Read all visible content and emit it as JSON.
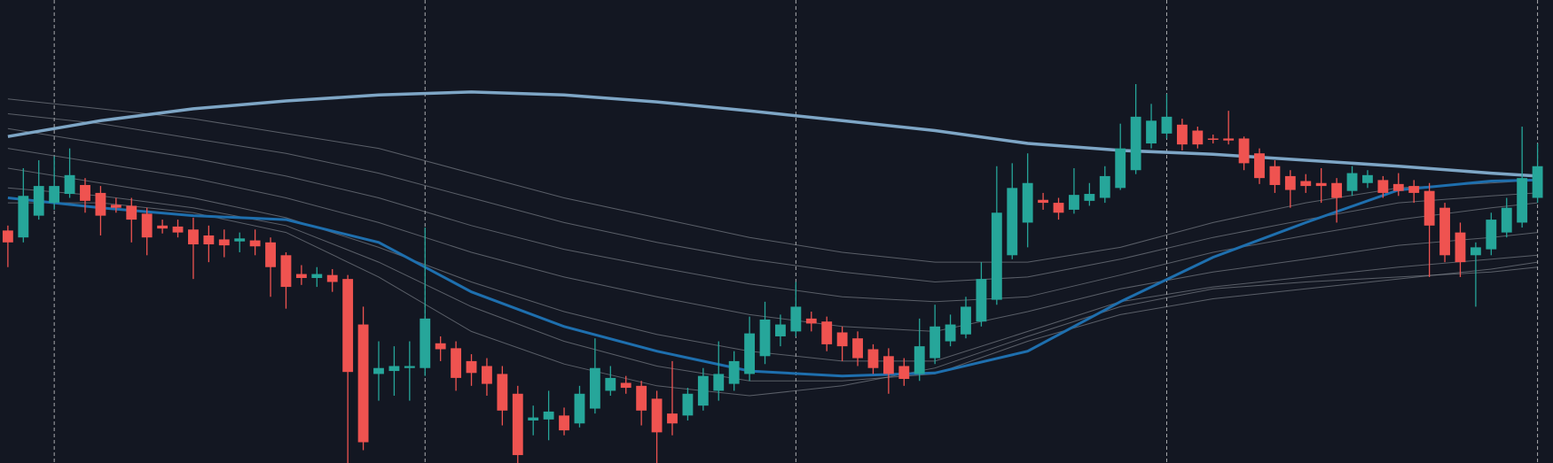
{
  "chart_data": {
    "type": "candlestick",
    "background": "#131722",
    "up_color": "#26a69a",
    "down_color": "#ef5350",
    "xlim": [
      -0.51,
      100
    ],
    "ylim": [
      2,
      470
    ],
    "xgrid": [
      3,
      27,
      51,
      75,
      99
    ],
    "open": [
      237,
      230,
      252,
      265,
      274,
      283,
      275,
      263,
      262,
      254,
      242,
      241,
      238,
      232,
      228,
      226,
      227,
      225,
      212,
      193,
      189,
      192,
      188,
      142,
      92,
      95,
      98,
      98,
      123,
      118,
      105,
      100,
      92,
      72,
      45,
      46,
      50,
      42,
      57,
      75,
      83,
      80,
      67,
      52,
      50,
      60,
      75,
      82,
      92,
      110,
      130,
      135,
      148,
      145,
      134,
      128,
      117,
      110,
      100,
      92,
      108,
      125,
      132,
      145,
      167,
      212,
      245,
      268,
      265,
      258,
      267,
      270,
      280,
      298,
      325,
      335,
      344,
      338,
      330,
      330,
      330,
      315,
      302,
      292,
      287,
      285,
      285,
      277,
      285,
      288,
      284,
      282,
      277,
      260,
      235,
      212,
      218,
      235,
      245,
      270
    ],
    "high": [
      242,
      300,
      308,
      312,
      320,
      290,
      282,
      270,
      270,
      260,
      248,
      248,
      250,
      242,
      238,
      235,
      238,
      230,
      215,
      202,
      200,
      198,
      192,
      160,
      125,
      120,
      125,
      240,
      130,
      125,
      112,
      108,
      100,
      80,
      60,
      75,
      58,
      80,
      128,
      100,
      90,
      85,
      75,
      105,
      78,
      98,
      125,
      115,
      150,
      165,
      152,
      185,
      155,
      150,
      140,
      135,
      122,
      118,
      108,
      148,
      162,
      152,
      170,
      205,
      302,
      305,
      315,
      275,
      270,
      300,
      285,
      302,
      345,
      385,
      365,
      375,
      350,
      342,
      334,
      358,
      332,
      320,
      308,
      298,
      294,
      300,
      290,
      302,
      298,
      292,
      295,
      288,
      285,
      265,
      245,
      225,
      255,
      270,
      342,
      325
    ],
    "low": [
      200,
      225,
      248,
      258,
      270,
      255,
      232,
      255,
      225,
      212,
      234,
      230,
      188,
      205,
      210,
      215,
      212,
      170,
      158,
      182,
      180,
      175,
      2,
      15,
      65,
      70,
      65,
      90,
      105,
      75,
      80,
      70,
      40,
      2,
      30,
      25,
      30,
      38,
      52,
      70,
      72,
      40,
      2,
      30,
      45,
      55,
      65,
      75,
      85,
      102,
      120,
      130,
      135,
      115,
      105,
      100,
      92,
      72,
      80,
      85,
      102,
      120,
      128,
      140,
      162,
      208,
      220,
      258,
      248,
      254,
      262,
      265,
      278,
      294,
      320,
      330,
      318,
      320,
      325,
      324,
      298,
      284,
      275,
      260,
      275,
      265,
      245,
      272,
      280,
      270,
      272,
      265,
      190,
      205,
      190,
      160,
      212,
      230,
      240,
      265
    ],
    "close": [
      225,
      272,
      282,
      282,
      293,
      267,
      252,
      260,
      248,
      230,
      239,
      235,
      223,
      223,
      222,
      229,
      221,
      200,
      180,
      189,
      193,
      185,
      94,
      23,
      98,
      100,
      100,
      148,
      117,
      88,
      93,
      82,
      55,
      10,
      48,
      54,
      35,
      72,
      98,
      88,
      78,
      55,
      33,
      42,
      72,
      90,
      92,
      105,
      133,
      147,
      142,
      160,
      143,
      122,
      120,
      108,
      98,
      92,
      87,
      120,
      140,
      142,
      160,
      188,
      255,
      280,
      285,
      265,
      255,
      273,
      274,
      292,
      320,
      352,
      348,
      352,
      324,
      324,
      329,
      328,
      305,
      290,
      283,
      278,
      282,
      282,
      270,
      295,
      293,
      275,
      277,
      275,
      242,
      212,
      205,
      220,
      248,
      260,
      290,
      302
    ],
    "overlay_x": [
      0,
      6,
      12,
      18,
      24,
      30,
      36,
      42,
      48,
      54,
      60,
      66,
      72,
      78,
      84,
      90,
      96,
      99
    ],
    "overlays": [
      {
        "color": "#8a8f98",
        "values": [
          370,
          360,
          350,
          335,
          320,
          295,
          270,
          250,
          230,
          215,
          205,
          205,
          220,
          245,
          265,
          280,
          285,
          288
        ]
      },
      {
        "color": "#8a8f98",
        "values": [
          355,
          345,
          330,
          315,
          295,
          270,
          245,
          225,
          208,
          195,
          185,
          190,
          208,
          230,
          248,
          265,
          272,
          275
        ]
      },
      {
        "color": "#8a8f98",
        "values": [
          340,
          325,
          310,
          292,
          270,
          242,
          218,
          200,
          183,
          170,
          165,
          170,
          192,
          215,
          232,
          248,
          260,
          265
        ]
      },
      {
        "color": "#8a8f98",
        "values": [
          320,
          305,
          290,
          270,
          245,
          215,
          190,
          170,
          152,
          140,
          135,
          155,
          178,
          195,
          208,
          222,
          230,
          235
        ]
      },
      {
        "color": "#8a8f98",
        "values": [
          300,
          285,
          270,
          250,
          220,
          185,
          155,
          132,
          115,
          105,
          105,
          135,
          165,
          180,
          190,
          200,
          208,
          212
        ]
      },
      {
        "color": "#8a8f98",
        "values": [
          280,
          272,
          260,
          242,
          205,
          160,
          125,
          100,
          85,
          85,
          92,
          125,
          152,
          168,
          178,
          188,
          198,
          205
        ]
      },
      {
        "color": "#8a8f98",
        "values": [
          265,
          265,
          255,
          235,
          190,
          135,
          102,
          80,
          70,
          80,
          98,
          130,
          160,
          178,
          185,
          190,
          195,
          200
        ]
      },
      {
        "color": "#1e6fae",
        "values": [
          270,
          260,
          252,
          248,
          225,
          175,
          140,
          115,
          95,
          90,
          93,
          115,
          165,
          210,
          245,
          278,
          287,
          288
        ]
      },
      {
        "color": "#7ea6c6",
        "values": [
          332,
          348,
          360,
          368,
          374,
          377,
          374,
          367,
          358,
          348,
          338,
          325,
          318,
          314,
          308,
          302,
          295,
          292
        ]
      }
    ]
  }
}
